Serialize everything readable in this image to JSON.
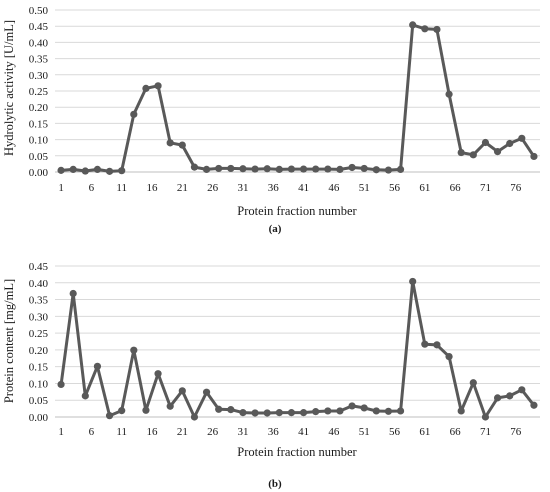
{
  "colors": {
    "series": "#595959",
    "grid": "#d9d9d9",
    "axis": "#bfbfbf",
    "text": "#1a1a1a"
  },
  "chart_data": [
    {
      "type": "line",
      "panel_label": "(a)",
      "xlabel": "Protein fraction number",
      "ylabel": "Hydrolytic activity [U/mL]",
      "ylim": [
        0,
        0.5
      ],
      "yticks": [
        "0.00",
        "0.05",
        "0.10",
        "0.15",
        "0.20",
        "0.25",
        "0.30",
        "0.35",
        "0.40",
        "0.45",
        "0.50"
      ],
      "xticks": [
        "1",
        "6",
        "11",
        "16",
        "21",
        "26",
        "31",
        "36",
        "41",
        "46",
        "51",
        "56",
        "61",
        "66",
        "71",
        "76"
      ],
      "grid": "horizontal",
      "legend": "none",
      "x": [
        1,
        3,
        5,
        7,
        9,
        11,
        13,
        15,
        17,
        19,
        21,
        23,
        25,
        27,
        29,
        31,
        33,
        35,
        37,
        39,
        41,
        43,
        45,
        47,
        49,
        51,
        53,
        55,
        57,
        59,
        61,
        63,
        65,
        67,
        69,
        71,
        73,
        75,
        77,
        79
      ],
      "values": [
        0.005,
        0.008,
        0.003,
        0.008,
        0.002,
        0.004,
        0.178,
        0.258,
        0.266,
        0.09,
        0.083,
        0.015,
        0.008,
        0.011,
        0.011,
        0.01,
        0.009,
        0.01,
        0.008,
        0.009,
        0.009,
        0.009,
        0.009,
        0.008,
        0.014,
        0.011,
        0.007,
        0.006,
        0.008,
        0.454,
        0.442,
        0.44,
        0.24,
        0.06,
        0.053,
        0.091,
        0.063,
        0.088,
        0.104,
        0.048
      ]
    },
    {
      "type": "line",
      "panel_label": "(b)",
      "xlabel": "Protein fraction number",
      "ylabel": "Protein content [mg/mL]",
      "ylim": [
        0,
        0.45
      ],
      "yticks": [
        "0.00",
        "0.05",
        "0.10",
        "0.15",
        "0.20",
        "0.25",
        "0.30",
        "0.35",
        "0.40",
        "0.45"
      ],
      "xticks": [
        "1",
        "6",
        "11",
        "16",
        "21",
        "26",
        "31",
        "36",
        "41",
        "46",
        "51",
        "56",
        "61",
        "66",
        "71",
        "76"
      ],
      "grid": "horizontal",
      "legend": "none",
      "x": [
        1,
        3,
        5,
        7,
        9,
        11,
        13,
        15,
        17,
        19,
        21,
        23,
        25,
        27,
        29,
        31,
        33,
        35,
        37,
        39,
        41,
        43,
        45,
        47,
        49,
        51,
        53,
        55,
        57,
        59,
        61,
        63,
        65,
        67,
        69,
        71,
        73,
        75,
        77,
        79
      ],
      "values": [
        0.097,
        0.368,
        0.063,
        0.151,
        0.004,
        0.019,
        0.199,
        0.02,
        0.129,
        0.032,
        0.078,
        0.0,
        0.074,
        0.023,
        0.022,
        0.013,
        0.012,
        0.012,
        0.013,
        0.013,
        0.013,
        0.016,
        0.018,
        0.018,
        0.033,
        0.027,
        0.018,
        0.017,
        0.018,
        0.404,
        0.217,
        0.215,
        0.18,
        0.018,
        0.102,
        0.0,
        0.057,
        0.063,
        0.081,
        0.035
      ]
    }
  ]
}
